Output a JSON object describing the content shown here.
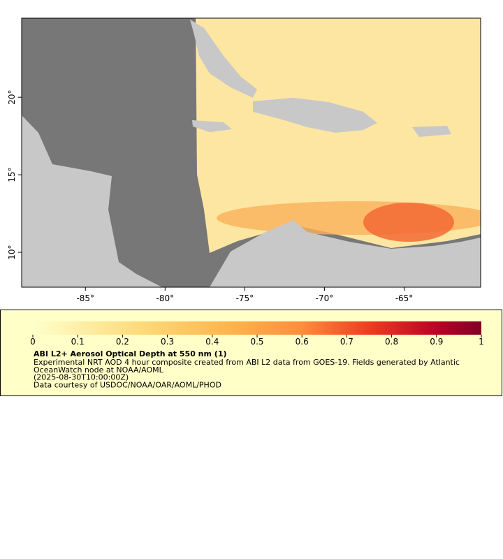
{
  "map": {
    "xlim": [
      -89,
      -60.2
    ],
    "ylim": [
      7.75,
      25.1
    ],
    "lon_ticks": [
      {
        "value": -85,
        "label": "-85°"
      },
      {
        "value": -80,
        "label": "-80°"
      },
      {
        "value": -75,
        "label": "-75°"
      },
      {
        "value": -70,
        "label": "-70°"
      },
      {
        "value": -65,
        "label": "-65°"
      }
    ],
    "lat_ticks": [
      {
        "value": 10,
        "label": "10°"
      },
      {
        "value": 15,
        "label": "15°"
      },
      {
        "value": 20,
        "label": "20°"
      }
    ]
  },
  "colorbar": {
    "lim": [
      0,
      1
    ],
    "ticks": [
      0,
      0.1,
      0.2,
      0.3,
      0.4,
      0.5,
      0.6,
      0.7,
      0.8,
      0.9,
      1
    ]
  },
  "legend": {
    "title": "ABI L2+ Aerosol Optical Depth at 550 nm (1)",
    "lines": [
      "Experimental NRT AOD 4 hour composite created from ABI L2 data from GOES-19. Fields generated by Atlantic",
      "OceanWatch node at NOAA/AOML",
      "(2025-08-30T10:00:00Z)",
      "Data courtesy of USDOC/NOAA/OAR/AOML/PHOD"
    ]
  }
}
